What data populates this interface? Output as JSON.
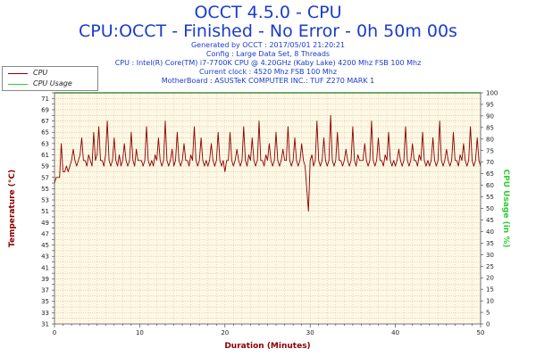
{
  "header": {
    "title": "OCCT 4.5.0 - CPU",
    "subtitle": "CPU:OCCT - Finished - No Error - 0h 50m 00s",
    "info_lines": [
      "Generated by OCCT : 2017/05/01 21:20:21",
      "Config : Large Data Set, 8 Threads",
      "CPU : Intel(R) Core(TM) i7-7700K CPU @ 4.20GHz (Kaby Lake) 4200 Mhz FSB 100 Mhz",
      "Current clock : 4520 Mhz FSB 100 Mhz",
      "MotherBoard : ASUSTeK COMPUTER INC.: TUF Z270 MARK 1"
    ]
  },
  "colors": {
    "temperature": "#8b0000",
    "cpu_usage": "#33cc33",
    "plot_background": "#fff8e4",
    "grid": "#c9c1a8",
    "title": "#1a3ccc"
  },
  "chart_data": {
    "type": "line",
    "xlabel": "Duration (Minutes)",
    "ylabel_left": "Temperature (°C)",
    "ylabel_right": "CPU Usage (in %)",
    "xlim": [
      0,
      50
    ],
    "ylim_left": [
      31,
      72
    ],
    "ylim_right": [
      0,
      100
    ],
    "x_ticks": [
      0,
      10,
      20,
      30,
      40,
      50
    ],
    "y_left_ticks": [
      31,
      32,
      33,
      34,
      35,
      36,
      37,
      38,
      39,
      40,
      41,
      42,
      43,
      44,
      45,
      46,
      47,
      48,
      49,
      50,
      51,
      52,
      53,
      54,
      55,
      56,
      57,
      58,
      59,
      60,
      61,
      62,
      63,
      64,
      65,
      66,
      67,
      68,
      69,
      70,
      71,
      72
    ],
    "y_left_tick_labels": [
      31,
      33,
      35,
      37,
      39,
      41,
      43,
      45,
      47,
      49,
      51,
      53,
      55,
      57,
      59,
      61,
      63,
      65,
      67,
      69,
      71
    ],
    "y_right_ticks": [
      0,
      5,
      10,
      15,
      20,
      25,
      30,
      35,
      40,
      45,
      50,
      55,
      60,
      65,
      70,
      75,
      80,
      85,
      90,
      95,
      100
    ],
    "y_right_tick_labels": [
      0,
      5,
      10,
      15,
      20,
      25,
      30,
      35,
      40,
      45,
      50,
      55,
      60,
      65,
      70,
      75,
      80,
      85,
      90,
      95,
      100
    ],
    "grid": true,
    "legend": "top-left",
    "series": [
      {
        "name": "CPU",
        "axis": "left",
        "x": [
          0,
          0.2,
          0.4,
          0.6,
          0.8,
          1,
          1.2,
          1.4,
          1.6,
          1.8,
          2,
          2.2,
          2.4,
          2.6,
          2.8,
          3,
          3.2,
          3.4,
          3.6,
          3.8,
          4,
          4.2,
          4.4,
          4.6,
          4.8,
          5,
          5.2,
          5.4,
          5.6,
          5.8,
          6,
          6.2,
          6.4,
          6.6,
          6.8,
          7,
          7.2,
          7.4,
          7.6,
          7.8,
          8,
          8.2,
          8.4,
          8.6,
          8.8,
          9,
          9.2,
          9.4,
          9.6,
          9.8,
          10,
          10.2,
          10.4,
          10.6,
          10.8,
          11,
          11.2,
          11.4,
          11.6,
          11.8,
          12,
          12.2,
          12.4,
          12.6,
          12.8,
          13,
          13.2,
          13.4,
          13.6,
          13.8,
          14,
          14.2,
          14.4,
          14.6,
          14.8,
          15,
          15.2,
          15.4,
          15.6,
          15.8,
          16,
          16.2,
          16.4,
          16.6,
          16.8,
          17,
          17.2,
          17.4,
          17.6,
          17.8,
          18,
          18.2,
          18.4,
          18.6,
          18.8,
          19,
          19.2,
          19.4,
          19.6,
          19.8,
          20,
          20.2,
          20.4,
          20.6,
          20.8,
          21,
          21.2,
          21.4,
          21.6,
          21.8,
          22,
          22.2,
          22.4,
          22.6,
          22.8,
          23,
          23.2,
          23.4,
          23.6,
          23.8,
          24,
          24.2,
          24.4,
          24.6,
          24.8,
          25,
          25.2,
          25.4,
          25.6,
          25.8,
          26,
          26.2,
          26.4,
          26.6,
          26.8,
          27,
          27.2,
          27.4,
          27.6,
          27.8,
          28,
          28.2,
          28.4,
          28.6,
          28.8,
          29,
          29.2,
          29.4,
          29.6,
          29.8,
          30,
          30.2,
          30.4,
          30.6,
          30.8,
          31,
          31.2,
          31.4,
          31.6,
          31.8,
          32,
          32.2,
          32.4,
          32.6,
          32.8,
          33,
          33.2,
          33.4,
          33.6,
          33.8,
          34,
          34.2,
          34.4,
          34.6,
          34.8,
          35,
          35.2,
          35.4,
          35.6,
          35.8,
          36,
          36.2,
          36.4,
          36.6,
          36.8,
          37,
          37.2,
          37.4,
          37.6,
          37.8,
          38,
          38.2,
          38.4,
          38.6,
          38.8,
          39,
          39.2,
          39.4,
          39.6,
          39.8,
          40,
          40.2,
          40.4,
          40.6,
          40.8,
          41,
          41.2,
          41.4,
          41.6,
          41.8,
          42,
          42.2,
          42.4,
          42.6,
          42.8,
          43,
          43.2,
          43.4,
          43.6,
          43.8,
          44,
          44.2,
          44.4,
          44.6,
          44.8,
          45,
          45.2,
          45.4,
          45.6,
          45.8,
          46,
          46.2,
          46.4,
          46.6,
          46.8,
          47,
          47.2,
          47.4,
          47.6,
          47.8,
          48,
          48.2,
          48.4,
          48.6,
          48.8,
          49,
          49.2,
          49.4,
          49.6,
          49.8,
          50
        ],
        "values": [
          56,
          57,
          57,
          57,
          63,
          58,
          58,
          59,
          58,
          59,
          60,
          62,
          60,
          59,
          60,
          61,
          64,
          60,
          60,
          59,
          61,
          60,
          59,
          65,
          60,
          61,
          66,
          60,
          60,
          59,
          61,
          67,
          60,
          59,
          60,
          64,
          60,
          59,
          61,
          59,
          60,
          63,
          60,
          59,
          60,
          65,
          60,
          59,
          62,
          60,
          60,
          60,
          59,
          60,
          66,
          60,
          59,
          60,
          59,
          61,
          60,
          64,
          60,
          59,
          60,
          67,
          60,
          59,
          60,
          62,
          59,
          60,
          65,
          60,
          59,
          60,
          63,
          60,
          60,
          59,
          61,
          60,
          66,
          60,
          59,
          60,
          64,
          60,
          59,
          60,
          59,
          60,
          63,
          60,
          59,
          60,
          65,
          60,
          59,
          60,
          58,
          60,
          60,
          65,
          60,
          59,
          60,
          62,
          60,
          59,
          60,
          66,
          60,
          59,
          61,
          60,
          64,
          60,
          59,
          60,
          67,
          60,
          60,
          59,
          61,
          60,
          63,
          60,
          59,
          60,
          65,
          60,
          59,
          60,
          62,
          60,
          60,
          66,
          60,
          59,
          60,
          64,
          60,
          59,
          60,
          63,
          60,
          59,
          55,
          51,
          60,
          61,
          59,
          60,
          67,
          60,
          59,
          60,
          64,
          60,
          59,
          60,
          68,
          60,
          59,
          60,
          65,
          60,
          60,
          59,
          60,
          62,
          60,
          59,
          60,
          66,
          60,
          59,
          61,
          60,
          60,
          60,
          63,
          60,
          59,
          60,
          67,
          60,
          59,
          60,
          64,
          60,
          60,
          59,
          61,
          60,
          65,
          60,
          59,
          60,
          59,
          60,
          62,
          60,
          59,
          60,
          66,
          60,
          59,
          60,
          63,
          60,
          60,
          59,
          61,
          60,
          65,
          60,
          59,
          60,
          59,
          60,
          64,
          60,
          59,
          60,
          67,
          60,
          59,
          60,
          62,
          60,
          59,
          60,
          65,
          60,
          60,
          59,
          61,
          60,
          63,
          60,
          59,
          60,
          66,
          60,
          59,
          60,
          64,
          60,
          59
        ]
      },
      {
        "name": "CPU Usage",
        "axis": "right",
        "x": [
          0,
          50
        ],
        "values": [
          100,
          100
        ]
      }
    ]
  }
}
